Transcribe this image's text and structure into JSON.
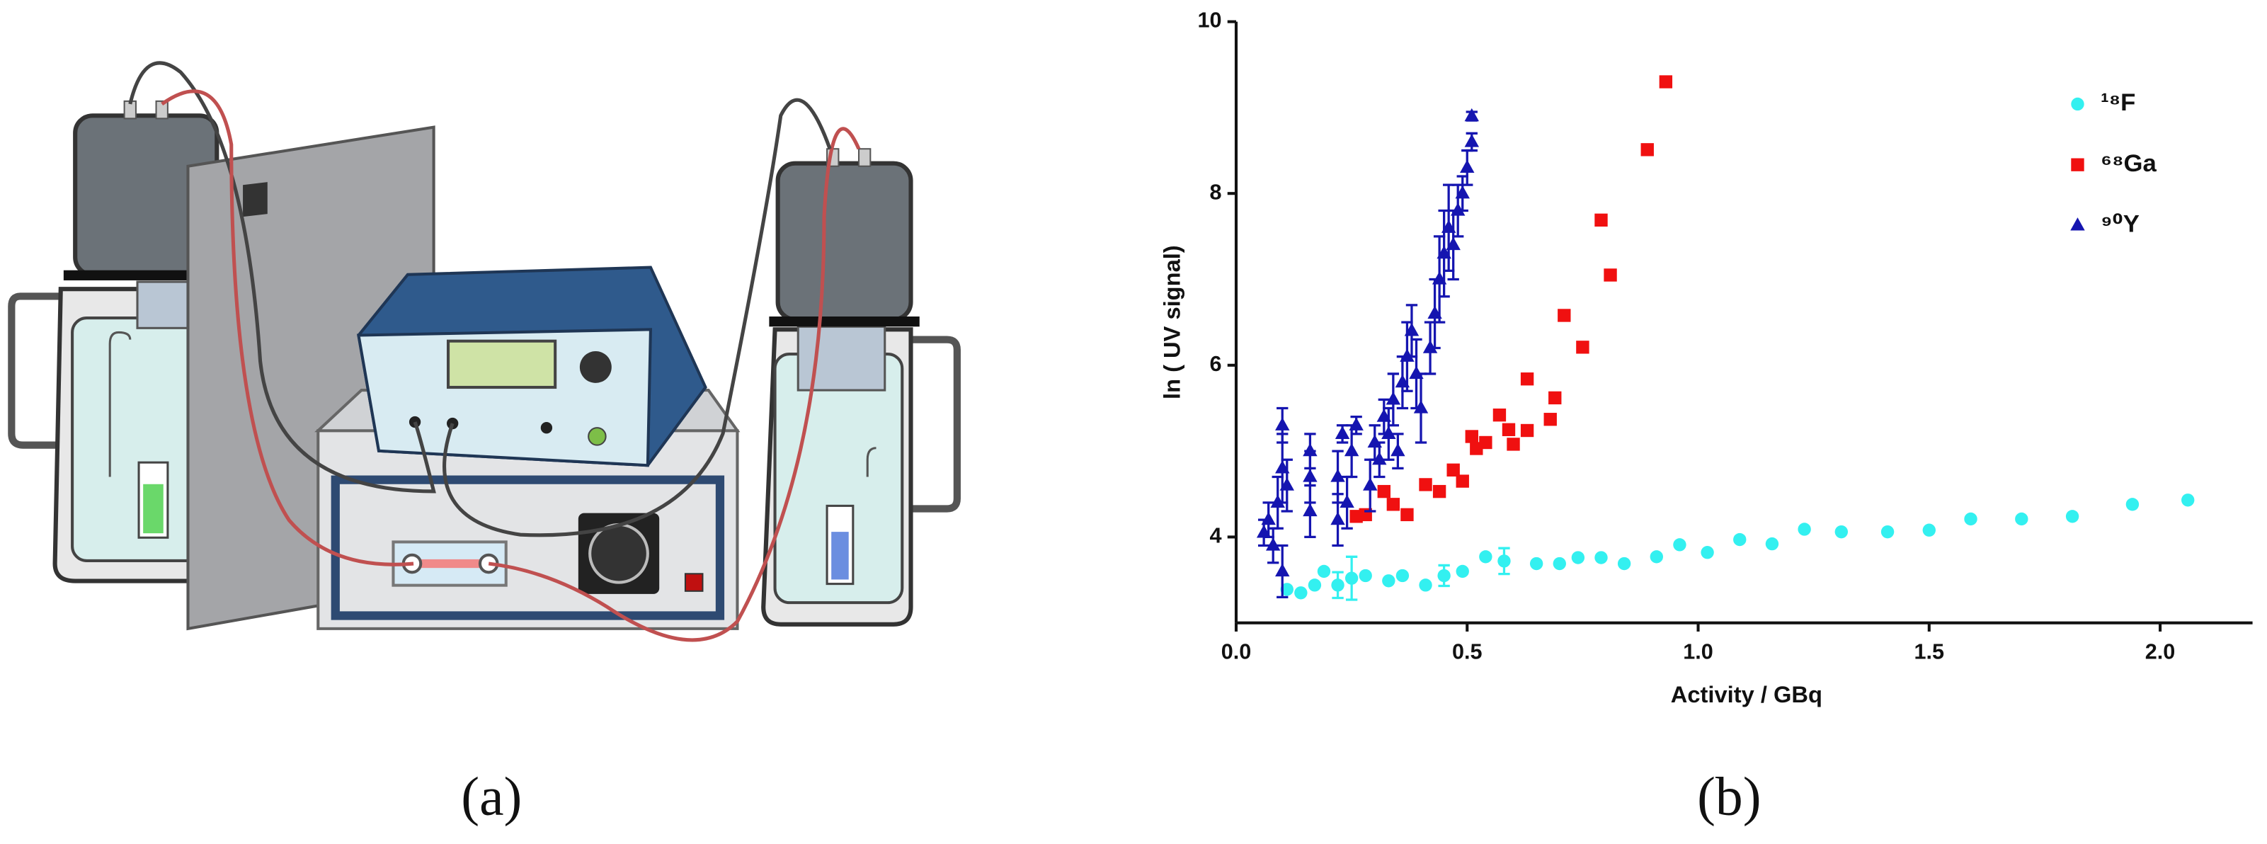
{
  "captions": [
    "(a)",
    "(b)"
  ],
  "chart_data": {
    "type": "scatter",
    "xlabel": "Activity / GBq",
    "ylabel": "ln ( UV signal)",
    "xlim": [
      0,
      2.2
    ],
    "ylim": [
      3,
      10
    ],
    "xticks": [
      {
        "value": 0,
        "label": "0.0"
      },
      0.5,
      {
        "value": 1,
        "label": "1.0"
      },
      1.5,
      {
        "value": 2,
        "label": "2.0"
      }
    ],
    "yticks": [
      4,
      6,
      8,
      10
    ],
    "legend": "top-right",
    "series": [
      {
        "name": "¹⁸F",
        "color": "#33f0f0",
        "marker": "circle",
        "x": [
          0.11,
          0.14,
          0.17,
          0.19,
          0.22,
          0.25,
          0.28,
          0.33,
          0.36,
          0.41,
          0.45,
          0.49,
          0.54,
          0.58,
          0.65,
          0.7,
          0.74,
          0.79,
          0.84,
          0.91,
          0.96,
          1.02,
          1.09,
          1.16,
          1.23,
          1.31,
          1.41,
          1.5,
          1.59,
          1.7,
          1.81,
          1.94,
          2.06
        ],
        "values": [
          3.39,
          3.35,
          3.44,
          3.6,
          3.44,
          3.52,
          3.55,
          3.49,
          3.55,
          3.44,
          3.55,
          3.6,
          3.77,
          3.72,
          3.69,
          3.69,
          3.76,
          3.76,
          3.69,
          3.77,
          3.91,
          3.82,
          3.97,
          3.92,
          4.09,
          4.06,
          4.06,
          4.08,
          4.21,
          4.21,
          4.24,
          4.38,
          4.43
        ],
        "errors": [
          null,
          null,
          null,
          null,
          0.15,
          0.25,
          null,
          null,
          null,
          null,
          0.12,
          null,
          null,
          0.15,
          null,
          null,
          null,
          null,
          null,
          null,
          null,
          null,
          null,
          null,
          null,
          null,
          null,
          null,
          null,
          null,
          null,
          null,
          null
        ]
      },
      {
        "name": "⁶⁸Ga",
        "color": "#f01010",
        "marker": "square",
        "x": [
          0.26,
          0.28,
          0.32,
          0.34,
          0.37,
          0.41,
          0.44,
          0.47,
          0.49,
          0.51,
          0.52,
          0.54,
          0.57,
          0.59,
          0.6,
          0.63,
          0.63,
          0.68,
          0.69,
          0.71,
          0.75,
          0.79,
          0.81,
          0.89,
          0.93
        ],
        "values": [
          4.24,
          4.26,
          4.53,
          4.38,
          4.26,
          4.61,
          4.53,
          4.78,
          4.65,
          5.17,
          5.03,
          5.1,
          5.42,
          5.25,
          5.08,
          5.24,
          5.84,
          5.37,
          5.62,
          6.58,
          6.21,
          7.69,
          7.05,
          8.51,
          9.3
        ]
      },
      {
        "name": "⁹⁰Y",
        "color": "#1515b0",
        "marker": "triangle",
        "x": [
          0.06,
          0.07,
          0.08,
          0.09,
          0.1,
          0.1,
          0.1,
          0.11,
          0.16,
          0.16,
          0.16,
          0.22,
          0.22,
          0.23,
          0.24,
          0.25,
          0.26,
          0.29,
          0.3,
          0.31,
          0.32,
          0.33,
          0.34,
          0.35,
          0.36,
          0.37,
          0.38,
          0.39,
          0.4,
          0.42,
          0.43,
          0.44,
          0.45,
          0.46,
          0.47,
          0.48,
          0.49,
          0.5,
          0.51,
          0.51
        ],
        "values": [
          4.05,
          4.2,
          3.9,
          4.4,
          3.6,
          4.8,
          5.3,
          4.6,
          4.3,
          4.7,
          5.0,
          4.2,
          4.7,
          5.2,
          4.4,
          5.0,
          5.3,
          4.6,
          5.1,
          4.9,
          5.4,
          5.2,
          5.6,
          5.0,
          5.8,
          6.1,
          6.4,
          5.9,
          5.5,
          6.2,
          6.6,
          7.0,
          7.3,
          7.6,
          7.4,
          7.8,
          8.0,
          8.3,
          8.6,
          8.9
        ],
        "errors": [
          0.15,
          0.2,
          0.2,
          0.3,
          0.3,
          0.4,
          0.2,
          0.3,
          0.3,
          0.3,
          0.2,
          0.3,
          0.3,
          0.1,
          0.3,
          0.3,
          0.1,
          0.3,
          0.2,
          0.2,
          0.2,
          0.3,
          0.3,
          0.2,
          0.3,
          0.4,
          0.3,
          0.4,
          0.4,
          0.3,
          0.4,
          0.5,
          0.5,
          0.5,
          0.4,
          0.3,
          0.2,
          0.2,
          0.1,
          0.05
        ]
      }
    ]
  }
}
